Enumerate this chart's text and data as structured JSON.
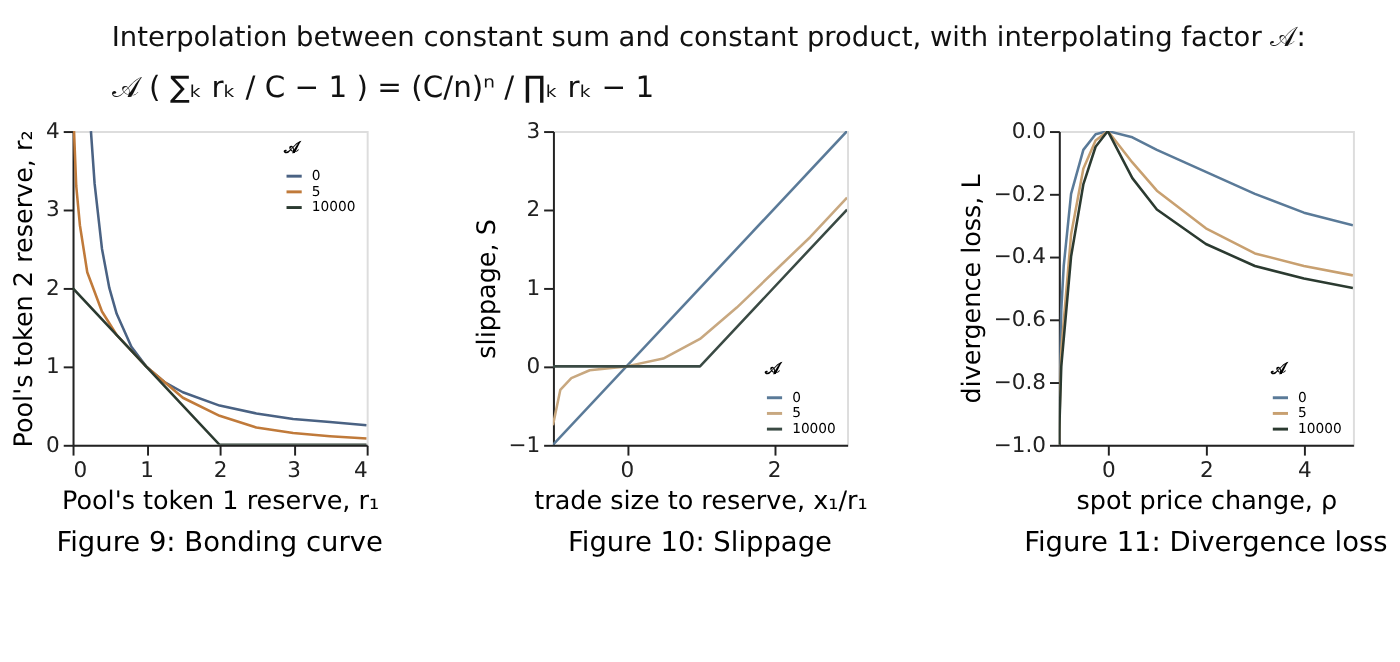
{
  "chart_data": [
    {
      "type": "other",
      "title": "Interpolation between constant sum and constant product, with interpolating factor 𝒜:",
      "annotations": [
        "𝒜 ( ∑ₖ rₖ / C − 1 ) = (C/n)ⁿ / ∏ₖ rₖ − 1"
      ]
    },
    {
      "type": "line",
      "title": "Figure 9: Bonding curve",
      "xlabel": "Pool's token 1 reserve, r₁",
      "ylabel": "Pool's token 2 reserve, r₂",
      "legend_title": "𝒜",
      "legend": "top right",
      "grid": false,
      "marker": "none",
      "line_style": "solid",
      "xlim": [
        0,
        4
      ],
      "ylim": [
        0,
        4
      ],
      "xticks": [
        0,
        1,
        2,
        3,
        4
      ],
      "yticks": [
        0,
        1,
        2,
        3,
        4
      ],
      "series": [
        {
          "name": "0",
          "color": "#4a6283",
          "x": [
            0.25,
            0.3,
            0.4,
            0.5,
            0.6,
            0.8,
            1,
            1.25,
            1.5,
            2,
            2.5,
            3,
            3.5,
            4
          ],
          "values": [
            4,
            3.33,
            2.5,
            2,
            1.67,
            1.25,
            1,
            0.8,
            0.67,
            0.5,
            0.4,
            0.33,
            0.29,
            0.25
          ]
        },
        {
          "name": "5",
          "color": "#c07a3a",
          "x": [
            0.02,
            0.05,
            0.1,
            0.2,
            0.4,
            0.6,
            0.8,
            1,
            1.25,
            1.5,
            2,
            2.5,
            3,
            3.5,
            4
          ],
          "values": [
            4,
            3.3,
            2.8,
            2.2,
            1.7,
            1.4,
            1.2,
            1,
            0.8,
            0.6,
            0.37,
            0.22,
            0.15,
            0.11,
            0.08
          ]
        },
        {
          "name": "10000",
          "color": "#2b3a30",
          "x": [
            0,
            2,
            4
          ],
          "values": [
            2,
            0,
            0
          ]
        }
      ]
    },
    {
      "type": "line",
      "title": "Figure 10: Slippage",
      "xlabel": "trade size to reserve, x₁/r₁",
      "ylabel": "slippage, S",
      "legend_title": "𝒜",
      "legend": "bottom right",
      "grid": false,
      "marker": "none",
      "line_style": "solid",
      "xlim": [
        -1,
        3
      ],
      "ylim": [
        -1,
        3
      ],
      "xticks": [
        0,
        2
      ],
      "yticks": [
        {
          "value": -1,
          "label": "−1"
        },
        0,
        1,
        2,
        3
      ],
      "series": [
        {
          "name": "0",
          "color": "#5a7a98",
          "x": [
            -1,
            3
          ],
          "values": [
            -1,
            3
          ]
        },
        {
          "name": "5",
          "color": "#c8a880",
          "x": [
            -1,
            -0.9,
            -0.75,
            -0.5,
            0,
            0.5,
            1,
            1.5,
            2,
            2.5,
            3
          ],
          "values": [
            -0.75,
            -0.3,
            -0.15,
            -0.05,
            0,
            0.1,
            0.35,
            0.75,
            1.2,
            1.65,
            2.15
          ]
        },
        {
          "name": "10000",
          "color": "#3a4a44",
          "x": [
            -1,
            1,
            3
          ],
          "values": [
            0,
            0,
            2
          ]
        }
      ]
    },
    {
      "type": "line",
      "title": "Figure 11: Divergence loss",
      "xlabel": "spot price change, ρ",
      "ylabel": "divergence loss, L",
      "legend_title": "𝒜",
      "legend": "bottom right",
      "grid": false,
      "marker": "none",
      "line_style": "solid",
      "xlim": [
        -1,
        5
      ],
      "ylim": [
        -1,
        0
      ],
      "xticks": [
        0,
        2,
        4
      ],
      "yticks": [
        {
          "value": -1,
          "label": "−1.0"
        },
        {
          "value": -0.8,
          "label": "−0.8"
        },
        {
          "value": -0.6,
          "label": "−0.6"
        },
        {
          "value": -0.4,
          "label": "−0.4"
        },
        {
          "value": -0.2,
          "label": "−0.2"
        },
        {
          "value": 0,
          "label": "0.0"
        }
      ],
      "series": [
        {
          "name": "0",
          "color": "#5a7a98",
          "x": [
            -1,
            -0.95,
            -0.9,
            -0.75,
            -0.5,
            -0.25,
            0,
            0.5,
            1,
            2,
            3,
            4,
            5
          ],
          "values": [
            -1,
            -0.57,
            -0.43,
            -0.2,
            -0.06,
            -0.01,
            0,
            -0.02,
            -0.06,
            -0.13,
            -0.2,
            -0.26,
            -0.3
          ]
        },
        {
          "name": "5",
          "color": "#c8a070",
          "x": [
            -1,
            -0.95,
            -0.75,
            -0.5,
            -0.25,
            0,
            0.5,
            1,
            2,
            3,
            4,
            5
          ],
          "values": [
            -1,
            -0.7,
            -0.33,
            -0.12,
            -0.03,
            0,
            -0.1,
            -0.19,
            -0.31,
            -0.39,
            -0.43,
            -0.46
          ]
        },
        {
          "name": "10000",
          "color": "#2b3a30",
          "x": [
            -1,
            -0.95,
            -0.75,
            -0.5,
            -0.25,
            0,
            0.5,
            1,
            2,
            3,
            4,
            5
          ],
          "values": [
            -1,
            -0.75,
            -0.4,
            -0.17,
            -0.05,
            0,
            -0.15,
            -0.25,
            -0.36,
            -0.43,
            -0.47,
            -0.5
          ]
        }
      ]
    }
  ]
}
